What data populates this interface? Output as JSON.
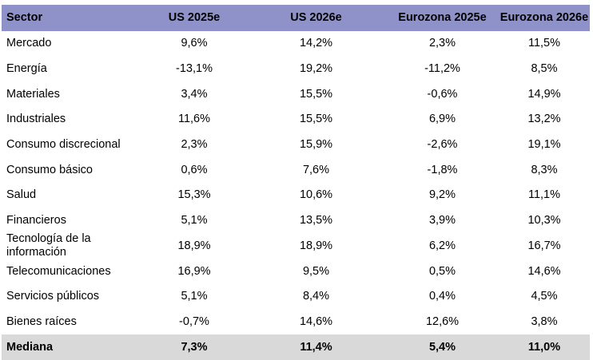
{
  "table": {
    "header": [
      "Sector",
      "US 2025e",
      "US 2026e",
      "Eurozona 2025e",
      "Eurozona 2026e"
    ],
    "rows": [
      [
        "Mercado",
        "9,6%",
        "14,2%",
        "2,3%",
        "11,5%"
      ],
      [
        "Energía",
        "-13,1%",
        "19,2%",
        "-11,2%",
        "8,5%"
      ],
      [
        "Materiales",
        "3,4%",
        "15,5%",
        "-0,6%",
        "14,9%"
      ],
      [
        "Industriales",
        "11,6%",
        "15,5%",
        "6,9%",
        "13,2%"
      ],
      [
        "Consumo discrecional",
        "2,3%",
        "15,9%",
        "-2,6%",
        "19,1%"
      ],
      [
        "Consumo básico",
        "0,6%",
        "7,6%",
        "-1,8%",
        "8,3%"
      ],
      [
        "Salud",
        "15,3%",
        "10,6%",
        "9,2%",
        "11,1%"
      ],
      [
        "Financieros",
        "5,1%",
        "13,5%",
        "3,9%",
        "10,3%"
      ],
      [
        "Tecnología de la información",
        "18,9%",
        "18,9%",
        "6,2%",
        "16,7%"
      ],
      [
        "Telecomunicaciones",
        "16,9%",
        "9,5%",
        "0,5%",
        "14,6%"
      ],
      [
        "Servicios públicos",
        "5,1%",
        "8,4%",
        "0,4%",
        "4,5%"
      ],
      [
        "Bienes raíces",
        "-0,7%",
        "14,6%",
        "12,6%",
        "3,8%"
      ]
    ],
    "footer": [
      "Mediana",
      "7,3%",
      "11,4%",
      "5,4%",
      "11,0%"
    ]
  },
  "colors": {
    "header_bg": "#8f92c9",
    "footer_bg": "#d9d9d9"
  }
}
